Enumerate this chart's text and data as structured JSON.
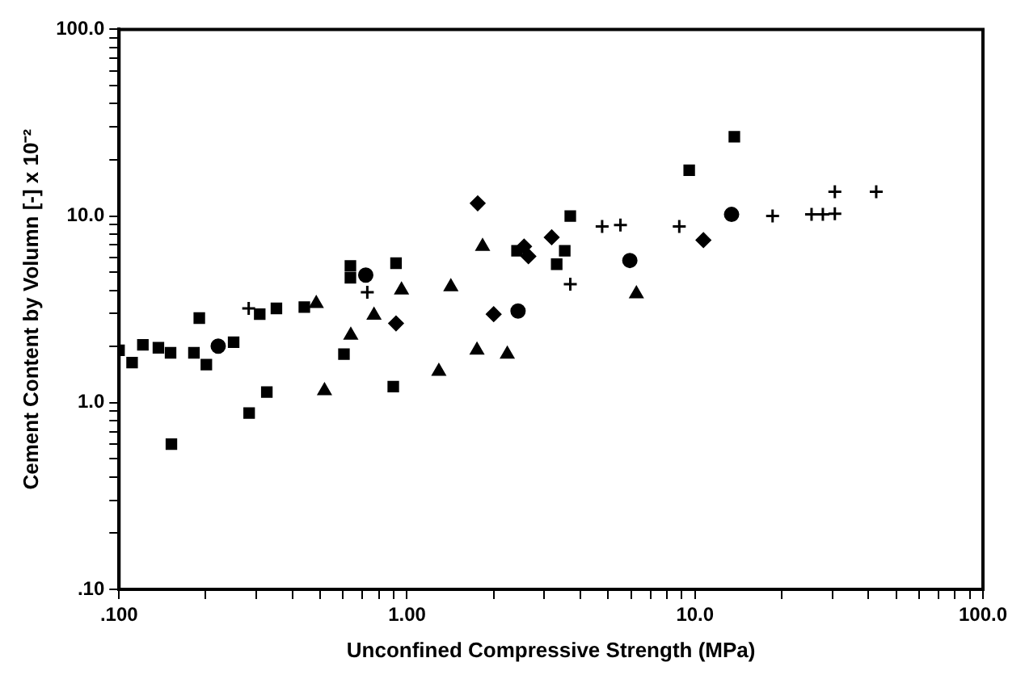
{
  "chart_data": {
    "type": "scatter",
    "xlabel": "Unconfined Compressive Strength (MPa)",
    "ylabel": "Cement Content by Volumn [-] x 10⁻²",
    "log": "xy",
    "grid": false,
    "legend": false,
    "xlim": [
      0.1,
      100
    ],
    "ylim": [
      0.1,
      100
    ],
    "xticks": [
      {
        "value": 0.1,
        "label": ".100"
      },
      {
        "value": 0.2,
        "label": null
      },
      {
        "value": 0.3,
        "label": null
      },
      {
        "value": 0.4,
        "label": null
      },
      {
        "value": 0.5,
        "label": null
      },
      {
        "value": 0.6,
        "label": null
      },
      {
        "value": 0.7,
        "label": null
      },
      {
        "value": 0.8,
        "label": null
      },
      {
        "value": 0.9,
        "label": null
      },
      {
        "value": 1,
        "label": "1.00"
      },
      {
        "value": 2,
        "label": null
      },
      {
        "value": 3,
        "label": null
      },
      {
        "value": 4,
        "label": null
      },
      {
        "value": 5,
        "label": null
      },
      {
        "value": 6,
        "label": null
      },
      {
        "value": 7,
        "label": null
      },
      {
        "value": 8,
        "label": null
      },
      {
        "value": 9,
        "label": null
      },
      {
        "value": 10,
        "label": "10.0"
      },
      {
        "value": 20,
        "label": null
      },
      {
        "value": 30,
        "label": null
      },
      {
        "value": 40,
        "label": null
      },
      {
        "value": 50,
        "label": null
      },
      {
        "value": 60,
        "label": null
      },
      {
        "value": 70,
        "label": null
      },
      {
        "value": 80,
        "label": null
      },
      {
        "value": 90,
        "label": null
      },
      {
        "value": 100,
        "label": "100.0"
      }
    ],
    "yticks": [
      {
        "value": 0.1,
        "label": ".10"
      },
      {
        "value": 0.2,
        "label": null
      },
      {
        "value": 0.3,
        "label": null
      },
      {
        "value": 0.4,
        "label": null
      },
      {
        "value": 0.5,
        "label": null
      },
      {
        "value": 0.6,
        "label": null
      },
      {
        "value": 0.7,
        "label": null
      },
      {
        "value": 0.8,
        "label": null
      },
      {
        "value": 0.9,
        "label": null
      },
      {
        "value": 1,
        "label": "1.0"
      },
      {
        "value": 2,
        "label": null
      },
      {
        "value": 3,
        "label": null
      },
      {
        "value": 4,
        "label": null
      },
      {
        "value": 5,
        "label": null
      },
      {
        "value": 6,
        "label": null
      },
      {
        "value": 7,
        "label": null
      },
      {
        "value": 8,
        "label": null
      },
      {
        "value": 9,
        "label": null
      },
      {
        "value": 10,
        "label": "10.0"
      },
      {
        "value": 20,
        "label": null
      },
      {
        "value": 30,
        "label": null
      },
      {
        "value": 40,
        "label": null
      },
      {
        "value": 50,
        "label": null
      },
      {
        "value": 60,
        "label": null
      },
      {
        "value": 70,
        "label": null
      },
      {
        "value": 80,
        "label": null
      },
      {
        "value": 90,
        "label": null
      },
      {
        "value": 100,
        "label": "100.0"
      }
    ],
    "series": [
      {
        "marker": "square",
        "color": "#000000",
        "x": [
          0.1,
          0.111,
          0.121,
          0.137,
          0.151,
          0.182,
          0.201,
          0.25,
          0.19,
          0.308,
          0.352,
          0.44,
          0.636,
          0.636,
          0.916,
          0.604,
          0.896,
          0.326,
          0.283,
          0.152,
          2.41,
          3.53,
          3.31,
          3.69,
          9.55,
          13.7
        ],
        "values": [
          1.91,
          1.64,
          2.04,
          1.97,
          1.85,
          1.85,
          1.6,
          2.11,
          2.84,
          2.98,
          3.2,
          3.25,
          5.41,
          4.67,
          5.59,
          1.82,
          1.22,
          1.14,
          0.88,
          0.6,
          6.52,
          6.52,
          5.52,
          10.0,
          17.6,
          26.6
        ]
      },
      {
        "marker": "triangle",
        "color": "#000000",
        "x": [
          0.484,
          0.957,
          0.768,
          0.638,
          0.517,
          1.42,
          1.29,
          1.75,
          2.23,
          1.83,
          6.26
        ],
        "values": [
          3.4,
          4.01,
          2.94,
          2.3,
          1.16,
          4.18,
          1.47,
          1.91,
          1.82,
          6.87,
          3.83
        ]
      },
      {
        "marker": "diamond",
        "color": "#000000",
        "x": [
          0.916,
          2.0,
          1.76,
          2.55,
          2.64,
          3.18,
          10.7
        ],
        "values": [
          2.66,
          2.98,
          11.7,
          6.87,
          6.09,
          7.69,
          7.43
        ]
      },
      {
        "marker": "circle",
        "color": "#000000",
        "x": [
          0.221,
          0.719,
          2.43,
          5.94,
          13.4
        ],
        "values": [
          2.01,
          4.83,
          3.1,
          5.78,
          10.2
        ]
      },
      {
        "marker": "cross",
        "color": "#000000",
        "x": [
          4.76,
          5.51,
          8.82,
          18.6,
          25.4,
          27.8,
          30.6,
          30.6,
          42.6
        ],
        "values": [
          8.79,
          8.96,
          8.79,
          10.0,
          10.2,
          10.2,
          10.3,
          13.5,
          13.5
        ]
      },
      {
        "marker": "cross",
        "color": "#000000",
        "x": [
          0.282,
          0.728,
          3.69
        ],
        "values": [
          3.2,
          3.91,
          4.32
        ]
      }
    ]
  }
}
